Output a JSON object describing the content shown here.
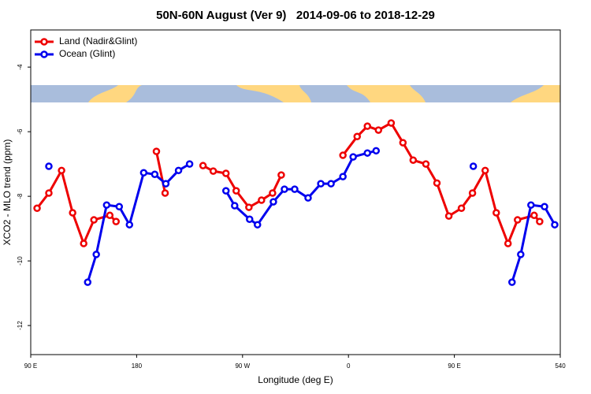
{
  "chart_data": {
    "type": "line",
    "title": "50N-60N August (Ver 9)   2014-09-06 to 2018-12-29",
    "xlabel": "Longitude (deg E)",
    "ylabel": "XCO2 - MLO trend (ppm)",
    "xlim": [
      90,
      540
    ],
    "ylim": [
      -12.9,
      -2.85
    ],
    "xticks": [
      {
        "value": 90,
        "label": "90 E"
      },
      180,
      {
        "value": 270,
        "label": "90 W"
      },
      {
        "value": 360,
        "label": "0"
      },
      {
        "value": 450,
        "label": "90 E"
      },
      540
    ],
    "yticks": [
      -4,
      -6,
      -8,
      -10,
      -12
    ],
    "legend": "top-left",
    "series": [
      {
        "name": "Land (Nadir&Glint)",
        "color": "#ee0000",
        "x": [
          95.4,
          105.4,
          116.2,
          125.6,
          135.0,
          143.7,
          157.2,
          162.5,
          null,
          196.8,
          204.2,
          null,
          236.4,
          245.1,
          255.9,
          264.6,
          275.4,
          286.1,
          295.5,
          302.9,
          null,
          355.3,
          367.4,
          376.1,
          385.5,
          396.3,
          406.3,
          415.0,
          425.8,
          435.2,
          445.3,
          456.0,
          465.4,
          476.2,
          485.6,
          495.6,
          503.7,
          517.8,
          522.5
        ],
        "values": [
          -8.37,
          -7.9,
          -7.2,
          -8.51,
          -9.46,
          -8.73,
          -8.59,
          -8.78,
          null,
          -6.61,
          -7.9,
          null,
          -7.05,
          -7.22,
          -7.29,
          -7.83,
          -8.34,
          -8.12,
          -7.9,
          -7.34,
          null,
          -6.73,
          -6.15,
          -5.83,
          -5.95,
          -5.73,
          -6.34,
          -6.88,
          -7.0,
          -7.59,
          -8.61,
          -8.37,
          -7.9,
          -7.2,
          -8.51,
          -9.46,
          -8.73,
          -8.59,
          -8.78
        ]
      },
      {
        "name": "Ocean (Glint)",
        "color": "#0000ee",
        "x": [
          105.4,
          null,
          138.4,
          145.7,
          154.5,
          165.2,
          173.9,
          186.0,
          195.4,
          204.8,
          215.6,
          225.0,
          null,
          255.9,
          263.3,
          276.0,
          282.7,
          296.2,
          305.6,
          314.3,
          325.7,
          336.5,
          345.2,
          355.3,
          364.0,
          376.1,
          383.5,
          null,
          466.1,
          null,
          499.0,
          506.4,
          515.1,
          526.6,
          535.3
        ],
        "values": [
          -7.07,
          null,
          -10.66,
          -9.8,
          -8.27,
          -8.32,
          -8.88,
          -7.27,
          -7.32,
          -7.61,
          -7.2,
          -7.0,
          null,
          -7.83,
          -8.29,
          -8.71,
          -8.88,
          -8.17,
          -7.78,
          -7.78,
          -8.05,
          -7.61,
          -7.61,
          -7.39,
          -6.78,
          -6.66,
          -6.59,
          null,
          -7.07,
          null,
          -10.66,
          -9.8,
          -8.27,
          -8.32,
          -8.88
        ]
      }
    ]
  }
}
